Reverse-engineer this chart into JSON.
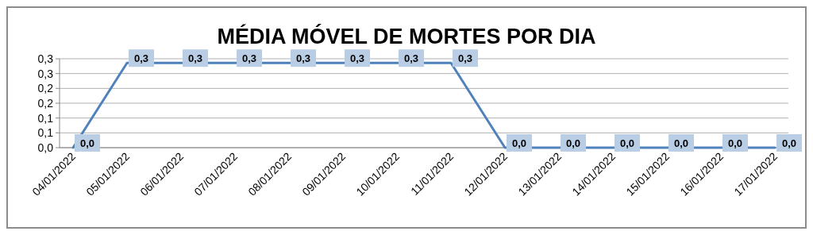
{
  "chart_data": {
    "type": "line",
    "title": "MÉDIA MÓVEL DE MORTES POR DIA",
    "categories": [
      "04/01/2022",
      "05/01/2022",
      "06/01/2022",
      "07/01/2022",
      "08/01/2022",
      "09/01/2022",
      "10/01/2022",
      "11/01/2022",
      "12/01/2022",
      "13/01/2022",
      "14/01/2022",
      "15/01/2022",
      "16/01/2022",
      "17/01/2022"
    ],
    "series": [
      {
        "color": "#4f81bd",
        "values": [
          0,
          0.286,
          0.286,
          0.286,
          0.286,
          0.286,
          0.286,
          0.286,
          0,
          0,
          0,
          0,
          0,
          0
        ],
        "value_labels": [
          "0,0",
          "0,3",
          "0,3",
          "0,3",
          "0,3",
          "0,3",
          "0,3",
          "0,3",
          "0,0",
          "0,0",
          "0,0",
          "0,0",
          "0,0",
          "0,0"
        ]
      }
    ],
    "ylim": [
      0,
      0.3
    ],
    "yticks": [
      {
        "value": 0,
        "label": "0,0"
      },
      {
        "value": 0.05,
        "label": "0,1"
      },
      {
        "value": 0.1,
        "label": "0,1"
      },
      {
        "value": 0.15,
        "label": "0,2"
      },
      {
        "value": 0.2,
        "label": "0,2"
      },
      {
        "value": 0.25,
        "label": "0,3"
      },
      {
        "value": 0.3,
        "label": "0,3"
      }
    ],
    "grid": "y",
    "marker": "none",
    "line_style": "solid"
  }
}
